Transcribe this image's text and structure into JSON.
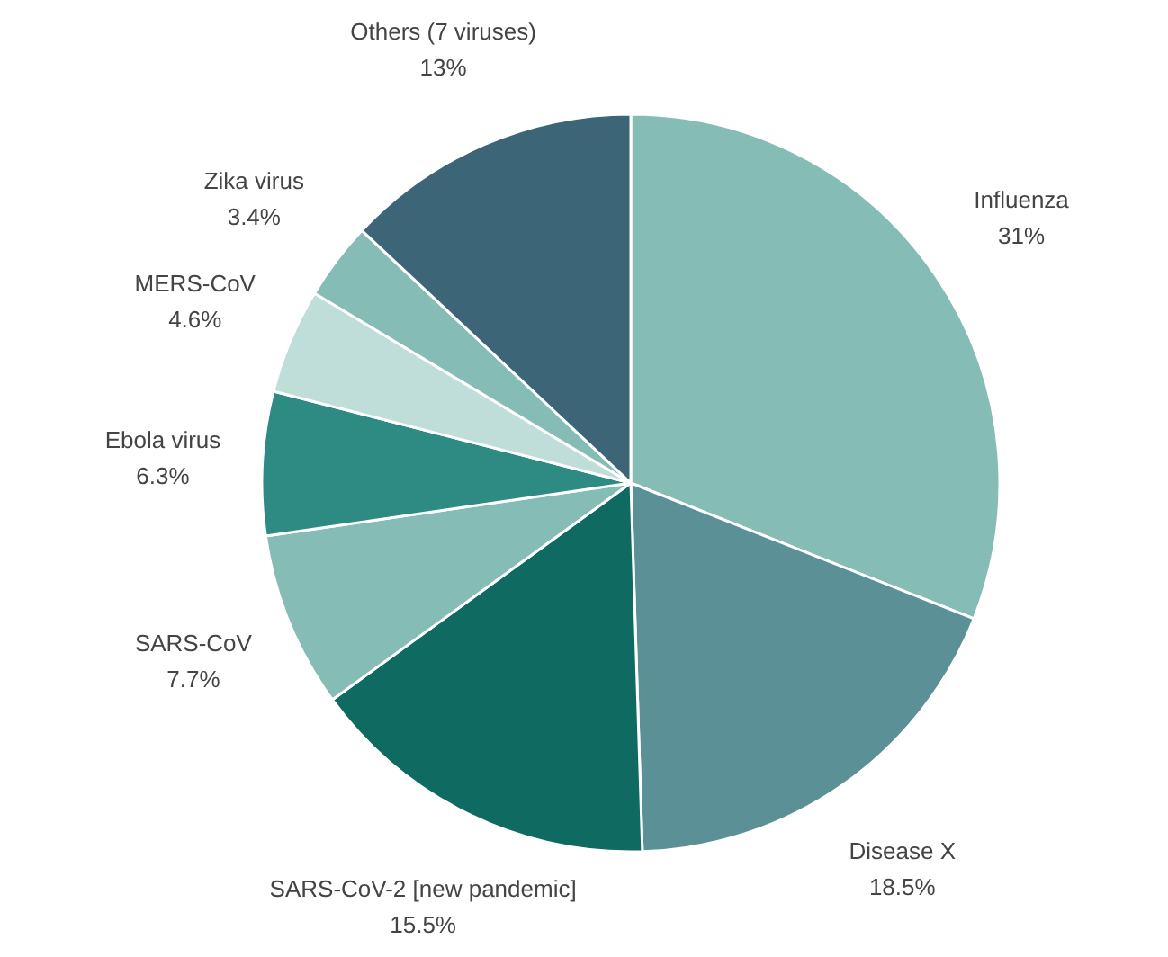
{
  "chart_data": {
    "type": "pie",
    "categories": [
      "Influenza",
      "Disease X",
      "SARS-CoV-2 [new pandemic]",
      "SARS-CoV",
      "Ebola virus",
      "MERS-CoV",
      "Zika virus",
      "Others (7 viruses)"
    ],
    "values": [
      31,
      18.5,
      15.5,
      7.7,
      6.3,
      4.6,
      3.4,
      13
    ],
    "colors": [
      "#85bcb5",
      "#5b9096",
      "#0f6b62",
      "#85bcb5",
      "#2e8b83",
      "#c0ded9",
      "#85bcb5",
      "#3d6578"
    ],
    "value_labels": [
      "31%",
      "18.5%",
      "15.5%",
      "7.7%",
      "6.3%",
      "4.6%",
      "3.4%",
      "13%"
    ]
  }
}
